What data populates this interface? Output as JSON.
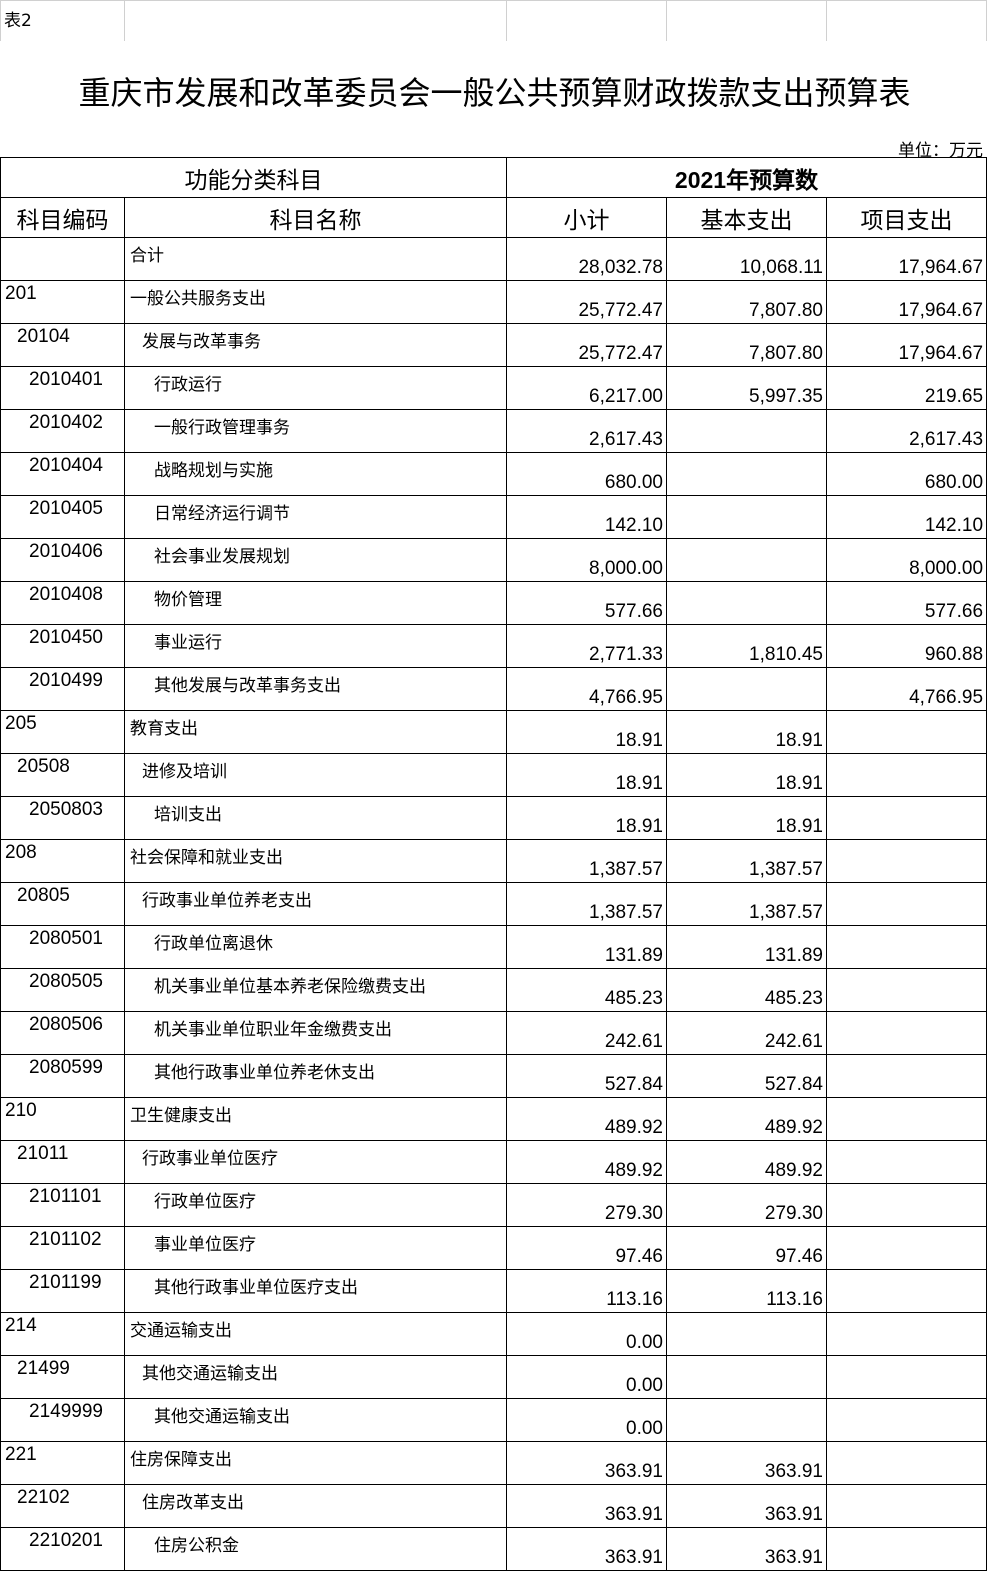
{
  "sheet_tag": "表2",
  "title": "重庆市发展和改革委员会一般公共预算财政拨款支出预算表",
  "unit": "单位：万元",
  "header": {
    "group_left": "功能分类科目",
    "group_right": "2021年预算数",
    "columns": [
      "科目编码",
      "科目名称",
      "小计",
      "基本支出",
      "项目支出"
    ]
  },
  "rows": [
    {
      "level": 1,
      "code": "",
      "name": "合计",
      "subtotal": "28,032.78",
      "basic": "10,068.11",
      "project": "17,964.67"
    },
    {
      "level": 1,
      "code": "201",
      "name": "一般公共服务支出",
      "subtotal": "25,772.47",
      "basic": "7,807.80",
      "project": "17,964.67"
    },
    {
      "level": 2,
      "code": "20104",
      "name": "发展与改革事务",
      "subtotal": "25,772.47",
      "basic": "7,807.80",
      "project": "17,964.67"
    },
    {
      "level": 3,
      "code": "2010401",
      "name": "行政运行",
      "subtotal": "6,217.00",
      "basic": "5,997.35",
      "project": "219.65"
    },
    {
      "level": 3,
      "code": "2010402",
      "name": "一般行政管理事务",
      "subtotal": "2,617.43",
      "basic": "",
      "project": "2,617.43"
    },
    {
      "level": 3,
      "code": "2010404",
      "name": "战略规划与实施",
      "subtotal": "680.00",
      "basic": "",
      "project": "680.00"
    },
    {
      "level": 3,
      "code": "2010405",
      "name": "日常经济运行调节",
      "subtotal": "142.10",
      "basic": "",
      "project": "142.10"
    },
    {
      "level": 3,
      "code": "2010406",
      "name": "社会事业发展规划",
      "subtotal": "8,000.00",
      "basic": "",
      "project": "8,000.00"
    },
    {
      "level": 3,
      "code": "2010408",
      "name": "物价管理",
      "subtotal": "577.66",
      "basic": "",
      "project": "577.66"
    },
    {
      "level": 3,
      "code": "2010450",
      "name": "事业运行",
      "subtotal": "2,771.33",
      "basic": "1,810.45",
      "project": "960.88"
    },
    {
      "level": 3,
      "code": "2010499",
      "name": "其他发展与改革事务支出",
      "subtotal": "4,766.95",
      "basic": "",
      "project": "4,766.95"
    },
    {
      "level": 1,
      "code": "205",
      "name": "教育支出",
      "subtotal": "18.91",
      "basic": "18.91",
      "project": ""
    },
    {
      "level": 2,
      "code": "20508",
      "name": "进修及培训",
      "subtotal": "18.91",
      "basic": "18.91",
      "project": ""
    },
    {
      "level": 3,
      "code": "2050803",
      "name": "培训支出",
      "subtotal": "18.91",
      "basic": "18.91",
      "project": ""
    },
    {
      "level": 1,
      "code": "208",
      "name": "社会保障和就业支出",
      "subtotal": "1,387.57",
      "basic": "1,387.57",
      "project": ""
    },
    {
      "level": 2,
      "code": "20805",
      "name": "行政事业单位养老支出",
      "subtotal": "1,387.57",
      "basic": "1,387.57",
      "project": ""
    },
    {
      "level": 3,
      "code": "2080501",
      "name": "行政单位离退休",
      "subtotal": "131.89",
      "basic": "131.89",
      "project": ""
    },
    {
      "level": 3,
      "code": "2080505",
      "name": "机关事业单位基本养老保险缴费支出",
      "subtotal": "485.23",
      "basic": "485.23",
      "project": ""
    },
    {
      "level": 3,
      "code": "2080506",
      "name": "机关事业单位职业年金缴费支出",
      "subtotal": "242.61",
      "basic": "242.61",
      "project": ""
    },
    {
      "level": 3,
      "code": "2080599",
      "name": "其他行政事业单位养老休支出",
      "subtotal": "527.84",
      "basic": "527.84",
      "project": ""
    },
    {
      "level": 1,
      "code": "210",
      "name": "卫生健康支出",
      "subtotal": "489.92",
      "basic": "489.92",
      "project": ""
    },
    {
      "level": 2,
      "code": "21011",
      "name": "行政事业单位医疗",
      "subtotal": "489.92",
      "basic": "489.92",
      "project": ""
    },
    {
      "level": 3,
      "code": "2101101",
      "name": "行政单位医疗",
      "subtotal": "279.30",
      "basic": "279.30",
      "project": ""
    },
    {
      "level": 3,
      "code": "2101102",
      "name": "事业单位医疗",
      "subtotal": "97.46",
      "basic": "97.46",
      "project": ""
    },
    {
      "level": 3,
      "code": "2101199",
      "name": "其他行政事业单位医疗支出",
      "subtotal": "113.16",
      "basic": "113.16",
      "project": ""
    },
    {
      "level": 1,
      "code": "214",
      "name": "交通运输支出",
      "subtotal": "0.00",
      "basic": "",
      "project": ""
    },
    {
      "level": 2,
      "code": "21499",
      "name": "其他交通运输支出",
      "subtotal": "0.00",
      "basic": "",
      "project": ""
    },
    {
      "level": 3,
      "code": "2149999",
      "name": "其他交通运输支出",
      "subtotal": "0.00",
      "basic": "",
      "project": ""
    },
    {
      "level": 1,
      "code": "221",
      "name": "住房保障支出",
      "subtotal": "363.91",
      "basic": "363.91",
      "project": ""
    },
    {
      "level": 2,
      "code": "22102",
      "name": "住房改革支出",
      "subtotal": "363.91",
      "basic": "363.91",
      "project": ""
    },
    {
      "level": 3,
      "code": "2210201",
      "name": "住房公积金",
      "subtotal": "363.91",
      "basic": "363.91",
      "project": ""
    }
  ]
}
